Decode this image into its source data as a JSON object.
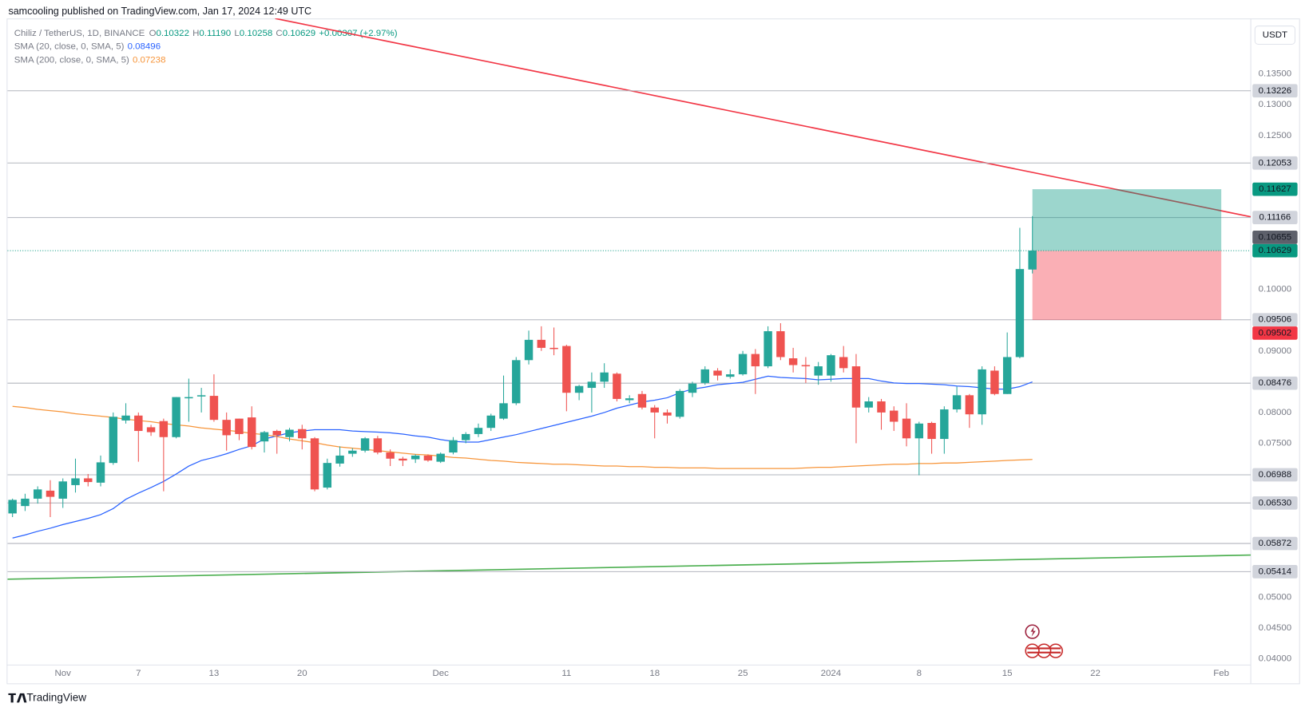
{
  "header": {
    "publisher": "samcooling published on TradingView.com, Jan 17, 2024 12:49 UTC",
    "footer": "TradingView"
  },
  "chart_data": {
    "type": "candlestick",
    "title": "Chiliz / TetherUS, 1D, BINANCE",
    "ohlc_legend": [
      {
        "key": "O",
        "label": "0.10322"
      },
      {
        "key": "H",
        "label": "0.11190"
      },
      {
        "key": "L",
        "label": "0.10258"
      },
      {
        "key": "C",
        "label": "0.10629"
      }
    ],
    "change": "+0.00307 (+2.97%)",
    "currency": "USDT",
    "categories": [
      null,
      null,
      null,
      null,
      "Nov",
      null,
      null,
      null,
      null,
      null,
      "7",
      null,
      null,
      null,
      null,
      null,
      "13",
      null,
      null,
      null,
      null,
      null,
      null,
      "20",
      null,
      null,
      null,
      null,
      null,
      null,
      null,
      null,
      null,
      null,
      "Dec",
      null,
      null,
      null,
      null,
      null,
      null,
      null,
      null,
      null,
      "11",
      null,
      null,
      null,
      null,
      null,
      null,
      "18",
      null,
      null,
      null,
      null,
      null,
      null,
      "25",
      null,
      null,
      null,
      null,
      null,
      null,
      "2024",
      null,
      null,
      null,
      null,
      null,
      null,
      "8",
      null,
      null,
      null,
      null,
      null,
      null,
      "15",
      null,
      null,
      null,
      null,
      null,
      null,
      "22",
      null,
      null,
      null,
      null,
      null,
      null,
      null,
      null,
      null,
      "Feb"
    ],
    "open": [
      0.0636,
      0.0648,
      0.066,
      0.0673,
      0.066,
      0.0682,
      0.0693,
      0.0686,
      0.0718,
      0.0787,
      0.0795,
      0.0776,
      0.0786,
      0.076,
      0.0823,
      0.0826,
      0.0827,
      0.0788,
      0.079,
      0.0792,
      0.0753,
      0.077,
      0.076,
      0.0773,
      0.0758,
      0.0678,
      0.0717,
      0.0733,
      0.0738,
      0.0758,
      0.0735,
      0.0725,
      0.0724,
      0.073,
      0.072,
      0.0735,
      0.0755,
      0.0765,
      0.0775,
      0.079,
      0.0815,
      0.0885,
      0.0918,
      0.0905,
      0.0908,
      0.0832,
      0.084,
      0.085,
      0.0863,
      0.082,
      0.083,
      0.0808,
      0.08,
      0.0793,
      0.0832,
      0.0848,
      0.0868,
      0.0858,
      0.0862,
      0.0895,
      0.0875,
      0.0932,
      0.0888,
      0.0877,
      0.086,
      0.086,
      0.089,
      0.0875,
      0.0808,
      0.0818,
      0.0803,
      0.079,
      0.0758,
      0.0783,
      0.0757,
      0.0805,
      0.0828,
      0.0797,
      0.0868,
      0.083,
      0.089,
      0.10322,
      null,
      null,
      null,
      null,
      null,
      null,
      null,
      null,
      null,
      null,
      null,
      null,
      null,
      null,
      null
    ],
    "high": [
      0.066,
      0.0668,
      0.068,
      0.069,
      0.0693,
      0.0725,
      0.07,
      0.073,
      0.08,
      0.0815,
      0.08,
      0.078,
      0.079,
      0.0825,
      0.0855,
      0.084,
      0.0862,
      0.08,
      0.079,
      0.081,
      0.077,
      0.0772,
      0.0775,
      0.078,
      0.076,
      0.0725,
      0.0745,
      0.0742,
      0.076,
      0.0762,
      0.074,
      0.0728,
      0.0732,
      0.0732,
      0.0735,
      0.076,
      0.0768,
      0.0782,
      0.0798,
      0.086,
      0.089,
      0.0933,
      0.094,
      0.0938,
      0.091,
      0.0845,
      0.0865,
      0.088,
      0.0865,
      0.0828,
      0.0835,
      0.0812,
      0.0805,
      0.0838,
      0.085,
      0.0875,
      0.0872,
      0.087,
      0.09,
      0.0903,
      0.094,
      0.0945,
      0.0905,
      0.089,
      0.0882,
      0.0895,
      0.0908,
      0.0895,
      0.0825,
      0.0822,
      0.081,
      0.0815,
      0.0785,
      0.0785,
      0.081,
      0.0842,
      0.083,
      0.0875,
      0.0875,
      0.093,
      0.11,
      0.1119,
      null,
      null,
      null,
      null,
      null,
      null,
      null,
      null,
      null,
      null,
      null,
      null,
      null,
      null,
      null
    ],
    "low": [
      0.063,
      0.064,
      0.0652,
      0.063,
      0.0645,
      0.067,
      0.068,
      0.068,
      0.0715,
      0.0782,
      0.072,
      0.0762,
      0.0672,
      0.0758,
      0.0785,
      0.08,
      0.0785,
      0.0738,
      0.0755,
      0.074,
      0.0735,
      0.0733,
      0.0753,
      0.074,
      0.0672,
      0.0675,
      0.0712,
      0.0728,
      0.0735,
      0.0732,
      0.0713,
      0.0713,
      0.0718,
      0.072,
      0.0718,
      0.0732,
      0.075,
      0.076,
      0.077,
      0.0788,
      0.0812,
      0.0878,
      0.09,
      0.0893,
      0.0802,
      0.082,
      0.08,
      0.084,
      0.0818,
      0.0815,
      0.0805,
      0.0758,
      0.0782,
      0.079,
      0.0825,
      0.0845,
      0.0852,
      0.0855,
      0.086,
      0.083,
      0.0872,
      0.0885,
      0.0865,
      0.0848,
      0.0845,
      0.085,
      0.0865,
      0.075,
      0.08,
      0.0772,
      0.077,
      0.0745,
      0.0698,
      0.0733,
      0.0733,
      0.08,
      0.0775,
      0.078,
      0.0828,
      0.083,
      0.0888,
      0.10258,
      null,
      null,
      null,
      null,
      null,
      null,
      null,
      null,
      null,
      null,
      null,
      null,
      null,
      null,
      null
    ],
    "close": [
      0.0658,
      0.066,
      0.0675,
      0.0663,
      0.0688,
      0.0693,
      0.0687,
      0.0719,
      0.0793,
      0.0795,
      0.077,
      0.0768,
      0.076,
      0.0825,
      0.0825,
      0.0828,
      0.0788,
      0.0763,
      0.0765,
      0.0744,
      0.0768,
      0.0763,
      0.0772,
      0.0758,
      0.0675,
      0.0718,
      0.073,
      0.0738,
      0.0758,
      0.0735,
      0.0725,
      0.0722,
      0.073,
      0.0722,
      0.0733,
      0.0755,
      0.0765,
      0.0775,
      0.0795,
      0.0815,
      0.0885,
      0.0918,
      0.0905,
      0.0903,
      0.0832,
      0.0843,
      0.085,
      0.0865,
      0.0822,
      0.0823,
      0.0808,
      0.08,
      0.0795,
      0.0835,
      0.0847,
      0.087,
      0.086,
      0.0862,
      0.0895,
      0.0875,
      0.0932,
      0.089,
      0.0877,
      0.0875,
      0.0875,
      0.0893,
      0.0872,
      0.0808,
      0.0818,
      0.08,
      0.0785,
      0.0758,
      0.0782,
      0.0757,
      0.0805,
      0.0828,
      0.0797,
      0.087,
      0.083,
      0.089,
      0.1033,
      0.10629,
      null,
      null,
      null,
      null,
      null,
      null,
      null,
      null,
      null,
      null,
      null,
      null,
      null,
      null,
      null
    ],
    "up_color": "#26a69a",
    "down_color": "#ef5350",
    "series": [
      {
        "name": "SMA (20, close, 0, SMA, 5)",
        "color": "#2962ff",
        "values": [
          0.0596,
          0.0601,
          0.0607,
          0.0612,
          0.0618,
          0.0623,
          0.0628,
          0.0634,
          0.0644,
          0.0659,
          0.0669,
          0.0678,
          0.0688,
          0.07,
          0.0713,
          0.0722,
          0.0727,
          0.0733,
          0.074,
          0.0746,
          0.0757,
          0.0762,
          0.0767,
          0.077,
          0.0772,
          0.0772,
          0.0772,
          0.077,
          0.0769,
          0.0768,
          0.0767,
          0.0765,
          0.0762,
          0.076,
          0.0756,
          0.0753,
          0.0752,
          0.0752,
          0.0756,
          0.076,
          0.0764,
          0.0769,
          0.0774,
          0.0779,
          0.0784,
          0.0789,
          0.0794,
          0.08,
          0.0807,
          0.0812,
          0.0817,
          0.082,
          0.0824,
          0.0832,
          0.0838,
          0.0841,
          0.0845,
          0.0847,
          0.0849,
          0.0854,
          0.0859,
          0.0857,
          0.0856,
          0.0855,
          0.0853,
          0.0854,
          0.0855,
          0.0855,
          0.0855,
          0.0851,
          0.0848,
          0.0847,
          0.0847,
          0.0846,
          0.0845,
          0.0843,
          0.0842,
          0.084,
          0.0838,
          0.0838,
          0.0842,
          0.08496,
          null,
          null,
          null,
          null,
          null,
          null,
          null,
          null,
          null,
          null,
          null,
          null,
          null,
          null,
          null
        ]
      },
      {
        "name": "SMA (200, close, 0, SMA, 5)",
        "color": "#f7953a",
        "values": [
          0.081,
          0.0808,
          0.0805,
          0.0803,
          0.0801,
          0.0798,
          0.0796,
          0.0794,
          0.0792,
          0.0789,
          0.0787,
          0.0785,
          0.0782,
          0.078,
          0.0778,
          0.0775,
          0.0773,
          0.0771,
          0.0769,
          0.0766,
          0.0764,
          0.0761,
          0.0757,
          0.0754,
          0.0751,
          0.0747,
          0.0744,
          0.0742,
          0.074,
          0.0738,
          0.0736,
          0.0734,
          0.0732,
          0.0731,
          0.0729,
          0.0727,
          0.0726,
          0.0724,
          0.0722,
          0.0721,
          0.0719,
          0.0718,
          0.0717,
          0.0716,
          0.0716,
          0.0715,
          0.0714,
          0.0713,
          0.0713,
          0.0712,
          0.0712,
          0.0711,
          0.0711,
          0.071,
          0.071,
          0.071,
          0.0709,
          0.0709,
          0.0709,
          0.0709,
          0.0709,
          0.0709,
          0.0709,
          0.071,
          0.0711,
          0.0711,
          0.0712,
          0.0713,
          0.0714,
          0.0715,
          0.0716,
          0.0716,
          0.0717,
          0.0717,
          0.0718,
          0.0718,
          0.0719,
          0.072,
          0.0721,
          0.0722,
          0.0723,
          0.07238,
          null,
          null,
          null,
          null,
          null,
          null,
          null,
          null,
          null,
          null,
          null,
          null,
          null,
          null,
          null
        ]
      }
    ],
    "ylim": [
      0.036,
      0.144
    ],
    "yticks": [
      {
        "value": 0.135,
        "label": "0.13500"
      },
      {
        "value": 0.13,
        "label": "0.13000"
      },
      {
        "value": 0.125,
        "label": "0.12500"
      },
      {
        "value": 0.1,
        "label": "0.10000"
      },
      {
        "value": 0.09,
        "label": "0.09000"
      },
      {
        "value": 0.08,
        "label": "0.08000"
      },
      {
        "value": 0.075,
        "label": "0.07500"
      },
      {
        "value": 0.05,
        "label": "0.05000"
      },
      {
        "value": 0.045,
        "label": "0.04500"
      },
      {
        "value": 0.04,
        "label": "0.04000"
      }
    ],
    "levels": [
      0.13226,
      0.12053,
      0.11166,
      0.09506,
      0.08476,
      0.06988,
      {
        "value": 0.0653,
        "label": "0.06530"
      },
      0.05872,
      0.05414
    ],
    "level_color": "#b2b5be",
    "position": {
      "target": 0.11627,
      "stop": 0.09502,
      "profit_color": "#089981",
      "loss_color": "#f23645",
      "profit_fill": "rgba(8,153,129,0.4)",
      "loss_fill": "rgba(242,54,69,0.4)"
    },
    "last_price_color": "#089981",
    "price_labels": [
      {
        "value": 0.10655,
        "color": "#5d606b"
      }
    ]
  }
}
